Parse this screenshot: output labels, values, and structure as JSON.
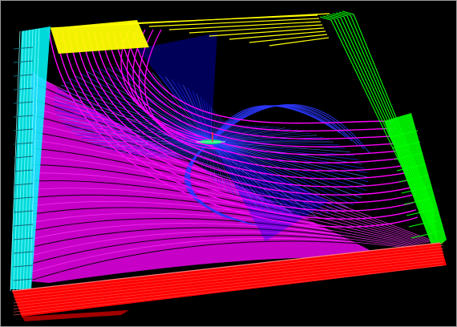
{
  "viewer": {
    "background": "#000000",
    "border_color": "#9a9a9a",
    "colors": {
      "top_fringe": "#ffff00",
      "right_face": "#00ff00",
      "front_face": "#ff0000",
      "left_face": "#00ffff",
      "field_arcs": "#ff00ff",
      "field_lines": "#0000ff",
      "source_glyph": "#00ff66",
      "source_tick": "#ff3333"
    }
  }
}
